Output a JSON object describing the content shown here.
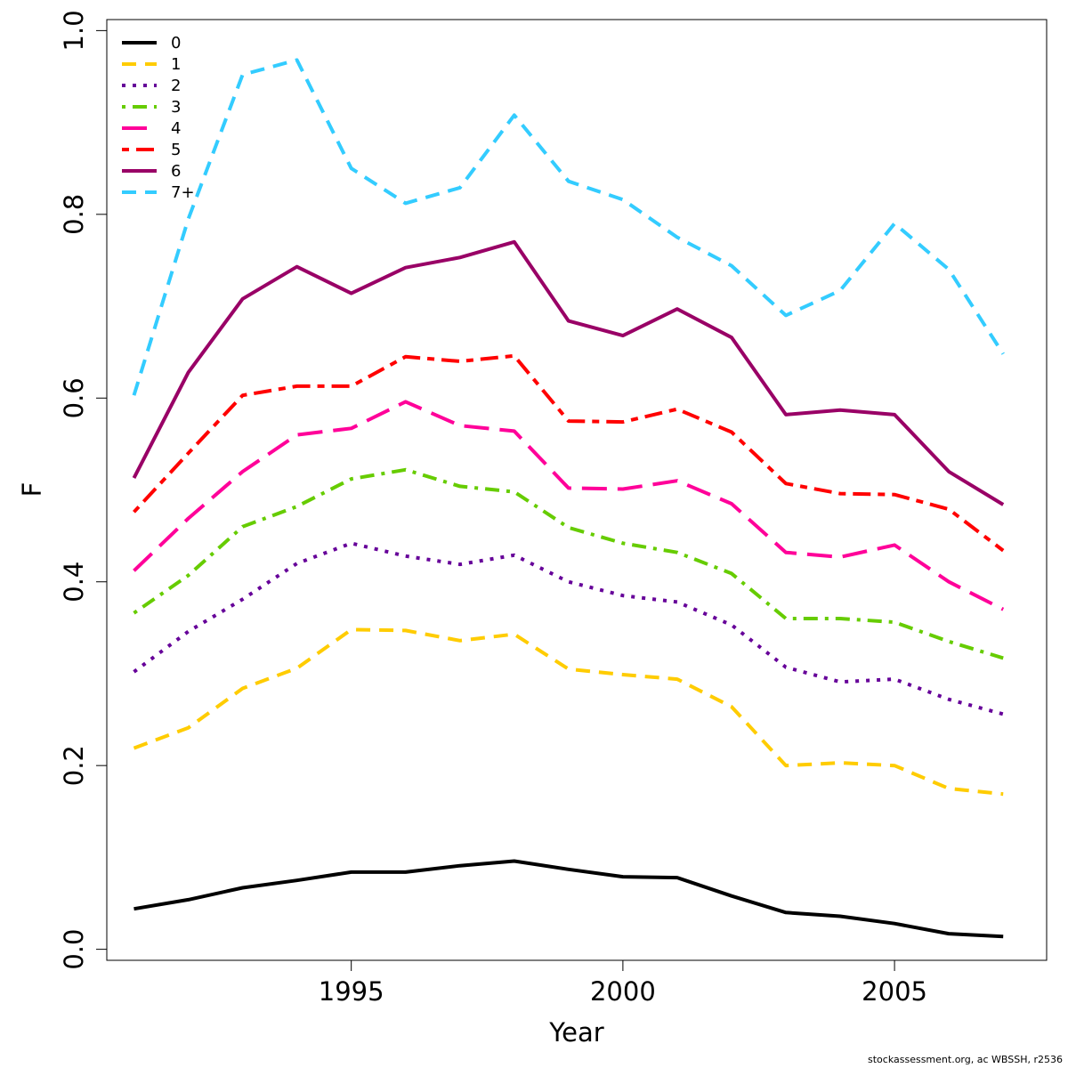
{
  "chart_data": {
    "type": "line",
    "xlabel": "Year",
    "ylabel": "F",
    "xlim": [
      1990.5,
      2007.8
    ],
    "ylim": [
      -0.012,
      1.012
    ],
    "x_ticks": [
      1995,
      2000,
      2005
    ],
    "x_tick_labels": [
      "1995",
      "2000",
      "2005"
    ],
    "y_ticks": [
      0.0,
      0.2,
      0.4,
      0.6,
      0.8,
      1.0
    ],
    "y_tick_labels": [
      "0.0",
      "0.2",
      "0.4",
      "0.6",
      "0.8",
      "1.0"
    ],
    "grid": false,
    "legend_position": "top-left",
    "x": [
      1991,
      1992,
      1993,
      1994,
      1995,
      1996,
      1997,
      1998,
      1999,
      2000,
      2001,
      2002,
      2003,
      2004,
      2005,
      2006,
      2007
    ],
    "series": [
      {
        "name": "0",
        "color": "#000000",
        "dash": "solid",
        "values": [
          0.044,
          0.054,
          0.067,
          0.075,
          0.084,
          0.084,
          0.091,
          0.096,
          0.087,
          0.079,
          0.078,
          0.058,
          0.04,
          0.036,
          0.028,
          0.017,
          0.014
        ]
      },
      {
        "name": "1",
        "color": "#FFCC00",
        "dash": "dashed",
        "values": [
          0.219,
          0.241,
          0.284,
          0.306,
          0.348,
          0.347,
          0.336,
          0.343,
          0.305,
          0.299,
          0.294,
          0.264,
          0.2,
          0.203,
          0.2,
          0.175,
          0.169
        ]
      },
      {
        "name": "2",
        "color": "#660099",
        "dash": "dotted",
        "values": [
          0.302,
          0.346,
          0.381,
          0.42,
          0.442,
          0.428,
          0.419,
          0.429,
          0.4,
          0.385,
          0.378,
          0.353,
          0.307,
          0.291,
          0.294,
          0.272,
          0.256
        ]
      },
      {
        "name": "3",
        "color": "#66CC00",
        "dash": "dotdash",
        "values": [
          0.366,
          0.407,
          0.46,
          0.482,
          0.512,
          0.522,
          0.504,
          0.498,
          0.459,
          0.442,
          0.432,
          0.409,
          0.36,
          0.36,
          0.356,
          0.335,
          0.317
        ]
      },
      {
        "name": "4",
        "color": "#FF0099",
        "dash": "longdash",
        "values": [
          0.412,
          0.469,
          0.52,
          0.56,
          0.567,
          0.596,
          0.57,
          0.564,
          0.502,
          0.501,
          0.51,
          0.485,
          0.432,
          0.427,
          0.44,
          0.4,
          0.37
        ]
      },
      {
        "name": "5",
        "color": "#FF0000",
        "dash": "twodash",
        "values": [
          0.476,
          0.54,
          0.603,
          0.613,
          0.613,
          0.645,
          0.64,
          0.646,
          0.575,
          0.574,
          0.588,
          0.563,
          0.507,
          0.496,
          0.495,
          0.479,
          0.434
        ]
      },
      {
        "name": "6",
        "color": "#990066",
        "dash": "solid",
        "values": [
          0.513,
          0.628,
          0.708,
          0.743,
          0.714,
          0.742,
          0.753,
          0.77,
          0.684,
          0.668,
          0.697,
          0.666,
          0.582,
          0.587,
          0.582,
          0.52,
          0.484
        ]
      },
      {
        "name": "7+",
        "color": "#33CCFF",
        "dash": "dashed",
        "values": [
          0.603,
          0.795,
          0.952,
          0.968,
          0.85,
          0.812,
          0.829,
          0.908,
          0.836,
          0.816,
          0.775,
          0.744,
          0.69,
          0.717,
          0.79,
          0.74,
          0.648
        ]
      }
    ]
  },
  "credit": "stockassessment.org, ac  WBSSH, r2536"
}
